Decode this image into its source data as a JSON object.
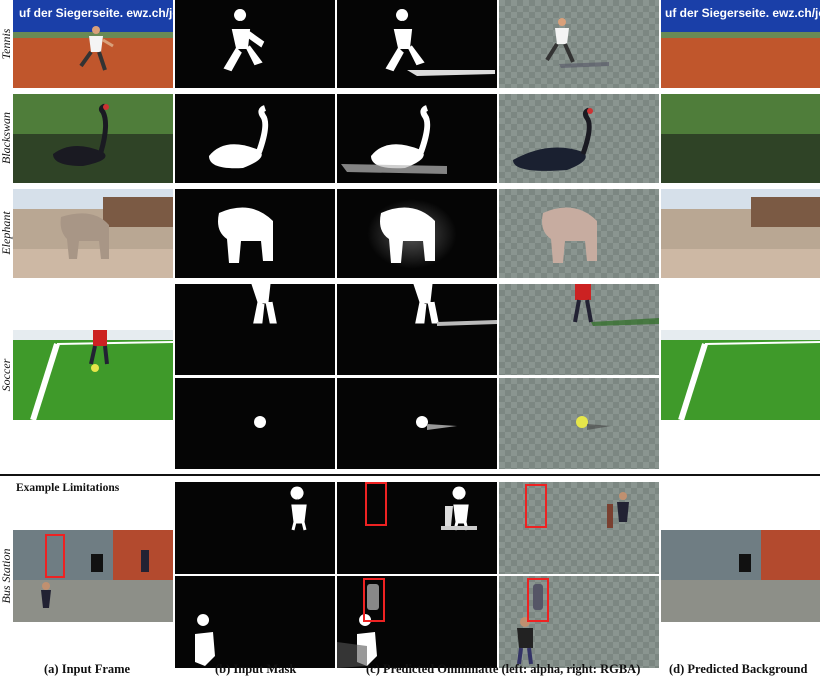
{
  "rows": [
    {
      "label": "Tennis"
    },
    {
      "label": "Blackswan"
    },
    {
      "label": "Elephant"
    },
    {
      "label": "Soccer"
    },
    {
      "label": "Bus Station"
    }
  ],
  "banner_text": "uf der Siegerseite. ewz.ch/jobs",
  "section_title": "Example Limitations",
  "captions": {
    "a": "(a) Input Frame",
    "b": "(b) Input Mask",
    "c": "(c) Predicted Omnimatte (left: alpha, right: RGBA)",
    "d": "(d) Predicted Background"
  },
  "colors": {
    "highlight_box": "#e22222",
    "checker_light": "#8a9590",
    "checker_dark": "#7c8782"
  }
}
